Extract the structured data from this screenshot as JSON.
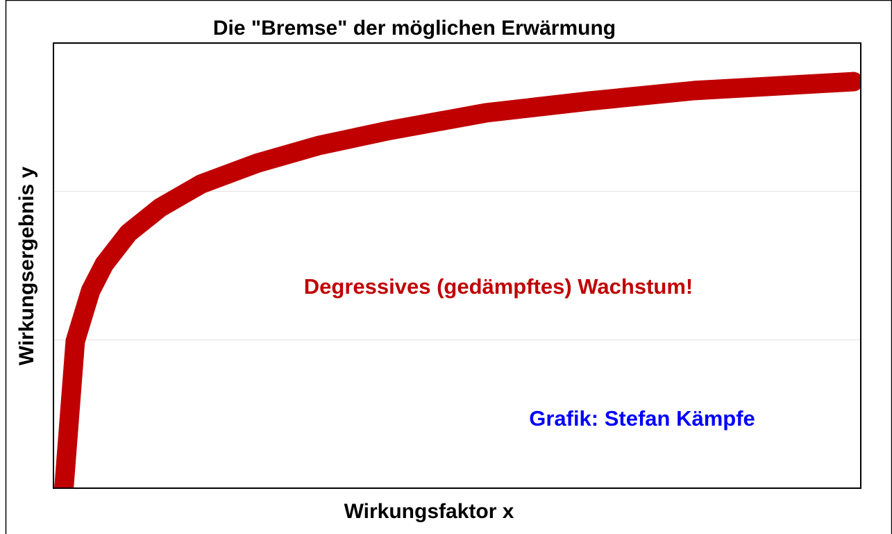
{
  "chart_data": {
    "type": "line",
    "title": "Die \"Bremse\" der möglichen Erwärmung",
    "x_label": "Wirkungsfaktor x",
    "y_label": "Wirkungsergebnis y",
    "annotations": [
      "Degressives (gedämpftes) Wachstum!",
      "Grafik: Stefan Kämpfe"
    ],
    "annotation_colors": [
      "#c00000",
      "#0000ff"
    ],
    "x": [
      1.3,
      2.7,
      4.6,
      6.3,
      9.3,
      13.2,
      18.3,
      25.2,
      32.9,
      41.5,
      53.6,
      66.5,
      79.4,
      99.1
    ],
    "series": [
      {
        "name": "y",
        "color": "#c00000",
        "values": [
          0,
          0.99,
          1.33,
          1.51,
          1.72,
          1.89,
          2.05,
          2.19,
          2.31,
          2.41,
          2.53,
          2.61,
          2.68,
          2.74
        ]
      }
    ],
    "xlim": [
      0,
      100
    ],
    "ylim": [
      0,
      3
    ],
    "yticks": [
      1,
      2
    ],
    "grid": true
  }
}
